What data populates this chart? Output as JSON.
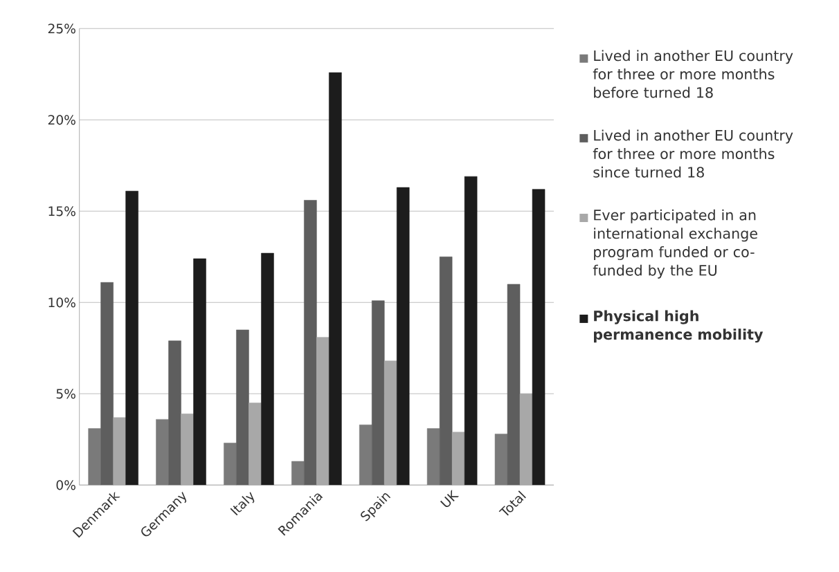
{
  "chart_data": {
    "type": "bar",
    "categories": [
      "Denmark",
      "Germany",
      "Italy",
      "Romania",
      "Spain",
      "UK",
      "Total"
    ],
    "series": [
      {
        "name": "Lived in another EU country for three or more months before turned 18",
        "color": "#7a7a7a",
        "values": [
          3.1,
          3.6,
          2.3,
          1.3,
          3.3,
          3.1,
          2.8
        ]
      },
      {
        "name": "Lived in another EU country for three or more months since turned 18",
        "color": "#5e5e5e",
        "values": [
          11.1,
          7.9,
          8.5,
          15.6,
          10.1,
          12.5,
          11.0
        ]
      },
      {
        "name": "Ever participated in an international exchange program funded or co-funded by the EU",
        "color": "#a8a8a8",
        "values": [
          3.7,
          3.9,
          4.5,
          8.1,
          6.8,
          2.9,
          5.0
        ]
      },
      {
        "name": "**Physical high permanence mobility**",
        "color": "#1c1c1c",
        "values": [
          16.1,
          12.4,
          12.7,
          22.6,
          16.3,
          16.9,
          16.2
        ]
      }
    ],
    "ylim": [
      0,
      25
    ],
    "yticks": [
      {
        "value": 0,
        "label": "0%"
      },
      {
        "value": 5,
        "label": "5%"
      },
      {
        "value": 10,
        "label": "10%"
      },
      {
        "value": 15,
        "label": "15%"
      },
      {
        "value": 20,
        "label": "20%"
      },
      {
        "value": 25,
        "label": "25%"
      }
    ],
    "grid": "y",
    "legend": "right"
  }
}
